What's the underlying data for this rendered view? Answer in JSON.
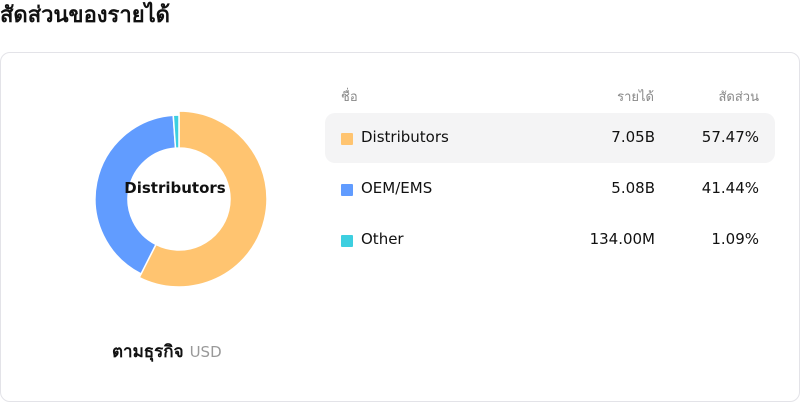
{
  "title": "สัดส่วนของรายได้",
  "chart_data": {
    "type": "pie",
    "center_label": "Distributors",
    "categories": [
      "Distributors",
      "OEM/EMS",
      "Other"
    ],
    "values": [
      57.47,
      41.44,
      1.09
    ],
    "colors": [
      "#FFC470",
      "#619CFF",
      "#3DCFE0"
    ],
    "highlighted": "Distributors"
  },
  "caption": {
    "label": "ตามธุรกิจ",
    "currency": "USD"
  },
  "table": {
    "headers": [
      "ชื่อ",
      "รายได้",
      "สัดส่วน"
    ],
    "rows": [
      {
        "name": "Distributors",
        "revenue": "7.05B",
        "share": "57.47%",
        "color": "#FFC470"
      },
      {
        "name": "OEM/EMS",
        "revenue": "5.08B",
        "share": "41.44%",
        "color": "#619CFF"
      },
      {
        "name": "Other",
        "revenue": "134.00M",
        "share": "1.09%",
        "color": "#3DCFE0"
      }
    ]
  }
}
